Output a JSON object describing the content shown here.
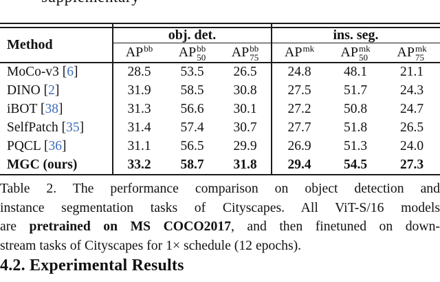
{
  "page": {
    "background": "#ffffff",
    "text_color": "#111111",
    "citation_color": "#3D6EB5"
  },
  "cropped_top_text": "supplementary",
  "table": {
    "method_header": "Method",
    "group_headers": [
      {
        "label": "obj. det."
      },
      {
        "label": "ins. seg."
      }
    ],
    "subheaders": [
      {
        "base": "AP",
        "sup": "bb",
        "sub": ""
      },
      {
        "base": "AP",
        "sup": "bb",
        "sub": "50"
      },
      {
        "base": "AP",
        "sup": "bb",
        "sub": "75"
      },
      {
        "base": "AP",
        "sup": "mk",
        "sub": ""
      },
      {
        "base": "AP",
        "sup": "mk",
        "sub": "50"
      },
      {
        "base": "AP",
        "sup": "mk",
        "sub": "75"
      }
    ],
    "rows": [
      {
        "method": {
          "name": "MoCo-v3 ",
          "open": "[",
          "cite": "6",
          "close": "]"
        },
        "values": [
          "28.5",
          "53.5",
          "26.5",
          "24.8",
          "48.1",
          "21.1"
        ],
        "bold": false
      },
      {
        "method": {
          "name": "DINO ",
          "open": "[",
          "cite": "2",
          "close": "]"
        },
        "values": [
          "31.9",
          "58.5",
          "30.8",
          "27.5",
          "51.7",
          "24.3"
        ],
        "bold": false
      },
      {
        "method": {
          "name": "iBOT ",
          "open": "[",
          "cite": "38",
          "close": "]"
        },
        "values": [
          "31.3",
          "56.6",
          "30.1",
          "27.2",
          "50.8",
          "24.7"
        ],
        "bold": false
      },
      {
        "method": {
          "name": "SelfPatch ",
          "open": "[",
          "cite": "35",
          "close": "]"
        },
        "values": [
          "31.4",
          "57.4",
          "30.7",
          "27.7",
          "51.8",
          "26.5"
        ],
        "bold": false
      },
      {
        "method": {
          "name": "PQCL ",
          "open": "[",
          "cite": "36",
          "close": "]"
        },
        "values": [
          "31.1",
          "56.5",
          "29.9",
          "26.9",
          "51.3",
          "24.0"
        ],
        "bold": false
      },
      {
        "method": {
          "name": "MGC (ours)",
          "open": "",
          "cite": "",
          "close": ""
        },
        "values": [
          "33.2",
          "58.7",
          "31.8",
          "29.4",
          "54.5",
          "27.3"
        ],
        "bold": true
      }
    ]
  },
  "caption": {
    "line1": "Table 2.  The performance comparison on object detection and",
    "line2": "instance segmentation tasks of Cityscapes.  All ViT-S/16 models",
    "line3_pre": "are ",
    "line3_bold": "pretrained on MS COCO2017",
    "line3_post": ", and then finetuned on down-",
    "line4": "stream tasks of Cityscapes for 1× schedule (12 epochs)."
  },
  "section_heading": "4.2. Experimental Results"
}
